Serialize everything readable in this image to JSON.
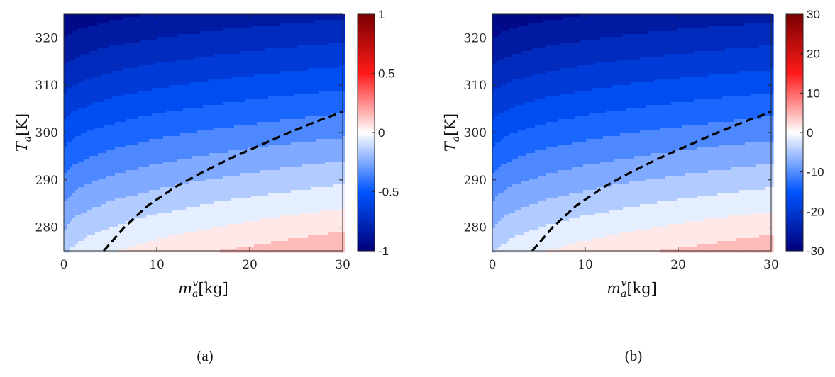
{
  "chart_data": [
    {
      "type": "heatmap",
      "panel_label": "(a)",
      "xlabel": {
        "base": "m",
        "sub": "a",
        "sup": "v",
        "unit": "[kg]"
      },
      "ylabel": {
        "base": "T",
        "sub": "a",
        "unit": "[K]"
      },
      "xlim": [
        0,
        30
      ],
      "ylim": [
        275,
        325
      ],
      "xticks": [
        0,
        10,
        20,
        30
      ],
      "yticks": [
        280,
        290,
        300,
        310,
        320
      ],
      "colorbar": {
        "range": [
          -1,
          1
        ],
        "ticks": [
          "1",
          "0.5",
          "0",
          "-0.5",
          "-1"
        ],
        "tick_values": [
          1,
          0.5,
          0,
          -0.5,
          -1
        ],
        "colormap": [
          "#00007a",
          "#0055ff",
          "#ffffff",
          "#ff1a1a",
          "#7a0000"
        ]
      },
      "contour_levels": 20,
      "zero_contour": {
        "style": "dashed",
        "color": "#000000",
        "x": [
          4.3,
          6.5,
          9,
          12,
          15,
          18,
          21,
          24,
          27,
          30
        ],
        "y": [
          275,
          280,
          284.5,
          288.5,
          291.7,
          294.6,
          297.2,
          299.8,
          302.2,
          304.4
        ]
      },
      "field_at_corners": {
        "x0_y325": -1.0,
        "x30_y325": -0.82,
        "x0_y275": -0.14,
        "x30_y275": 0.18
      }
    },
    {
      "type": "heatmap",
      "panel_label": "(b)",
      "xlabel": {
        "base": "m",
        "sub": "a",
        "sup": "v",
        "unit": "[kg]"
      },
      "ylabel": {
        "base": "T",
        "sub": "a",
        "unit": "[K]"
      },
      "xlim": [
        0,
        30
      ],
      "ylim": [
        275,
        325
      ],
      "xticks": [
        0,
        10,
        20,
        30
      ],
      "yticks": [
        280,
        290,
        300,
        310,
        320
      ],
      "colorbar": {
        "range": [
          -30,
          30
        ],
        "ticks": [
          "30",
          "20",
          "10",
          "0",
          "-10",
          "-20",
          "-30"
        ],
        "tick_values": [
          30,
          20,
          10,
          0,
          -10,
          -20,
          -30
        ],
        "colormap": [
          "#00007a",
          "#0055ff",
          "#ffffff",
          "#ff1a1a",
          "#7a0000"
        ]
      },
      "contour_levels": 20,
      "zero_contour": {
        "style": "dashed",
        "color": "#000000",
        "x": [
          4.3,
          6.5,
          9,
          12,
          15,
          18,
          21,
          24,
          27,
          30
        ],
        "y": [
          275,
          280,
          284.5,
          288.5,
          291.7,
          294.6,
          297.2,
          299.8,
          302.2,
          304.4
        ]
      },
      "field_at_corners": {
        "x0_y325": -30,
        "x30_y325": -25,
        "x0_y275": -4,
        "x30_y275": 5
      }
    }
  ]
}
